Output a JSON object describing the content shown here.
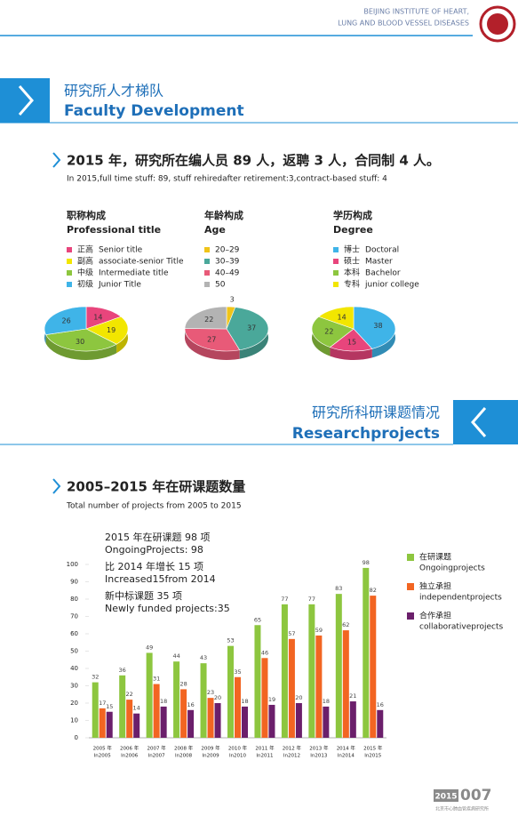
{
  "header": {
    "lines": [
      "BEIJING INSTITUTE OF HEART,",
      "LUNG AND BLOOD VESSEL DISEASES"
    ]
  },
  "section1": {
    "title_cn": "研究所人才梯队",
    "title_en": "Faculty Development",
    "heading": "2015 年，研究所在编人员 89 人，返聘 3 人，合同制 4 人。",
    "subheading": "In 2015,full time stuff: 89, stuff rehiredafter retirement:3,contract-based stuff: 4"
  },
  "section2": {
    "title_cn": "研究所科研课题情况",
    "title_en": "Researchprojects",
    "heading": "2005–2015 年在研课题数量",
    "subheading": "Total number of projects from 2005 to 2015",
    "annotations": [
      "2015 年在研课题 98 项",
      "OngoingProjects: 98",
      "比 2014 年增长 15 项",
      "Increased15from 2014",
      "新中标课题 35 项",
      "Newly funded projects:35"
    ]
  },
  "footer": {
    "year": "2015",
    "page": "007",
    "text": "北京市心肺血管疾病研究所"
  },
  "chart_data": [
    {
      "type": "pie",
      "title": "职称构成",
      "subtitle": "Professional title",
      "categories": [
        "正高",
        "副高",
        "中级",
        "初级"
      ],
      "categories_en": [
        "Senior title",
        "associate-senior Title",
        "Intermediate title",
        "Junior Title"
      ],
      "values": [
        14,
        19,
        30,
        26
      ],
      "colors": [
        "#e8457c",
        "#f2e600",
        "#8dc63f",
        "#3fb4e8"
      ]
    },
    {
      "type": "pie",
      "title": "年龄构成",
      "subtitle": "Age",
      "categories": [
        "20–29",
        "30–39",
        "40–49",
        "50"
      ],
      "values": [
        3,
        37,
        27,
        22
      ],
      "colors": [
        "#f0c419",
        "#4aa89a",
        "#e85a78",
        "#b3b3b3"
      ]
    },
    {
      "type": "pie",
      "title": "学历构成",
      "subtitle": "Degree",
      "categories": [
        "博士",
        "硕士",
        "本科",
        "专科"
      ],
      "categories_en": [
        "Doctoral",
        "Master",
        "Bachelor",
        "junior college"
      ],
      "values": [
        38,
        15,
        22,
        14
      ],
      "colors": [
        "#3fb4e8",
        "#e8457c",
        "#8dc63f",
        "#f2e600"
      ]
    },
    {
      "type": "bar",
      "categories": [
        "2005 年",
        "2006 年",
        "2007 年",
        "2008 年",
        "2009 年",
        "2010 年",
        "2011 年",
        "2012 年",
        "2013 年",
        "2014 年",
        "2015 年"
      ],
      "categories_en": [
        "In2005",
        "In2006",
        "In2007",
        "In2008",
        "In2009",
        "In2010",
        "In2011",
        "In2012",
        "In2013",
        "In2014",
        "In2015"
      ],
      "series": [
        {
          "name": "在研课题",
          "name_en": "Ongoingprojects",
          "color": "#8dc63f",
          "values": [
            32,
            36,
            49,
            44,
            43,
            53,
            65,
            77,
            77,
            83,
            98
          ]
        },
        {
          "name": "独立承担",
          "name_en": "independentprojects",
          "color": "#f26522",
          "values": [
            17,
            22,
            31,
            28,
            23,
            35,
            46,
            57,
            59,
            62,
            82
          ]
        },
        {
          "name": "合作承担",
          "name_en": "collaborativeprojects",
          "color": "#6b1f6b",
          "values": [
            15,
            14,
            18,
            16,
            20,
            18,
            19,
            20,
            18,
            21,
            16
          ]
        }
      ],
      "ylim": [
        0,
        100
      ],
      "yticks": [
        0,
        10,
        20,
        30,
        40,
        50,
        60,
        70,
        80,
        90,
        100
      ]
    }
  ]
}
